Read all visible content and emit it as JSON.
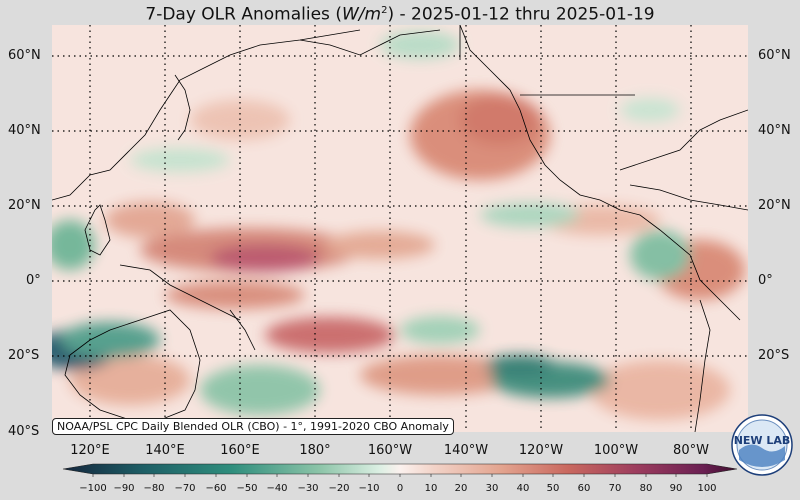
{
  "title": {
    "prefix": "7-Day OLR Anomalies (",
    "unit_main": "W/m",
    "unit_exp": "2",
    "suffix": ") - 2025-01-12 thru 2025-01-19"
  },
  "lat_labels": [
    "60°N",
    "40°N",
    "20°N",
    "0°",
    "20°S",
    "40°S"
  ],
  "lon_labels": [
    "120°E",
    "140°E",
    "160°E",
    "180°",
    "160°W",
    "140°W",
    "120°W",
    "100°W",
    "80°W"
  ],
  "source_note": "NOAA/PSL CPC Daily Blended OLR (CBO) - 1°, 1991-2020 CBO Anomaly",
  "colorbar": {
    "ticks": [
      "−100",
      "−90",
      "−80",
      "−70",
      "−60",
      "−50",
      "−40",
      "−30",
      "−20",
      "−10",
      "0",
      "10",
      "20",
      "30",
      "40",
      "50",
      "60",
      "70",
      "80",
      "90",
      "100"
    ],
    "colors": {
      "neg_max": "#14263d",
      "neg_high": "#1e6a6a",
      "neg_mid": "#5aa88a",
      "neg_low": "#cfe6d6",
      "zero": "#fbf1ee",
      "pos_low": "#f2cbbe",
      "pos_mid": "#d6826f",
      "pos_high": "#a8425a",
      "pos_max": "#3d0f2d"
    }
  },
  "logo": {
    "text": "NEW LAB"
  }
}
